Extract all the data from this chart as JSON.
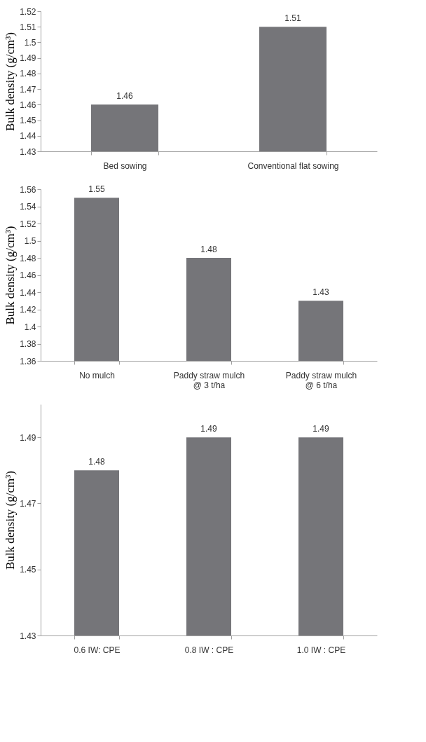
{
  "chart_data": [
    {
      "type": "bar",
      "ylabel": "Bulk density (g/cm³)",
      "categories": [
        "Bed sowing",
        "Conventional flat sowing"
      ],
      "values": [
        1.46,
        1.51
      ],
      "color": "#757579",
      "ylim": [
        1.43,
        1.52
      ],
      "yticks": [
        1.43,
        1.44,
        1.45,
        1.46,
        1.47,
        1.48,
        1.49,
        1.5,
        1.51,
        1.52
      ],
      "data_labels": true,
      "grid": false
    },
    {
      "type": "bar",
      "ylabel": "Bulk density (g/cm³)",
      "categories": [
        "No mulch",
        "Paddy straw mulch\n@ 3 t/ha",
        "Paddy straw mulch\n@ 6 t/ha"
      ],
      "values": [
        1.55,
        1.48,
        1.43
      ],
      "color": "#757579",
      "ylim": [
        1.36,
        1.56
      ],
      "yticks": [
        1.36,
        1.38,
        1.4,
        1.42,
        1.44,
        1.46,
        1.48,
        1.5,
        1.52,
        1.54,
        1.56
      ],
      "data_labels": true,
      "grid": false
    },
    {
      "type": "bar",
      "ylabel": "Bulk density (g/cm³)",
      "categories": [
        "0.6 IW: CPE",
        "0.8 IW : CPE",
        "1.0 IW : CPE"
      ],
      "values": [
        1.48,
        1.49,
        1.49
      ],
      "color": "#757579",
      "ylim": [
        1.43,
        1.5
      ],
      "yticks": [
        1.43,
        1.45,
        1.47,
        1.49
      ],
      "data_labels": true,
      "grid": false
    }
  ]
}
